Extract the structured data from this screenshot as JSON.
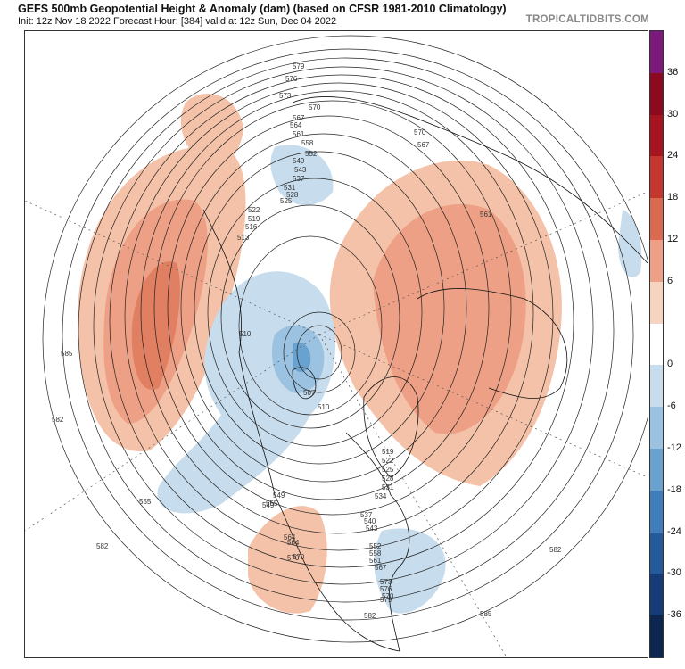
{
  "header": {
    "title": "GEFS 500mb Geopotential Height & Anomaly (dam) (based on CFSR 1981-2010 Climatology)",
    "subtitle": "Init: 12z Nov 18 2022   Forecast Hour: [384]   valid at 12z Sun, Dec 04 2022",
    "brand": "TROPICALTIDBITS.COM"
  },
  "colorbar": {
    "ticks": [
      "36",
      "30",
      "24",
      "18",
      "12",
      "6",
      "0",
      "-6",
      "-12",
      "-18",
      "-24",
      "-30",
      "-36"
    ],
    "colors": [
      "#7b1a7a",
      "#8b0a1e",
      "#a5141f",
      "#c2382e",
      "#d9694f",
      "#eda085",
      "#f7d3c1",
      "#ffffff",
      "#c7dcec",
      "#9bc2e0",
      "#6aa2cf",
      "#3f7dbb",
      "#225a9c",
      "#163c77",
      "#0d2550"
    ]
  },
  "map": {
    "height_labels": [
      "579",
      "576",
      "573",
      "570",
      "567",
      "564",
      "561",
      "558",
      "552",
      "549",
      "543",
      "537",
      "531",
      "528",
      "525",
      "522",
      "519",
      "516",
      "513",
      "510",
      "507",
      "510",
      "519",
      "522",
      "525",
      "528",
      "531",
      "534",
      "537",
      "540",
      "543",
      "549",
      "552",
      "555",
      "558",
      "561",
      "564",
      "567",
      "570",
      "573",
      "576",
      "579",
      "582",
      "585",
      "582",
      "582",
      "585",
      "561",
      "567",
      "570",
      "555",
      "549",
      "564",
      "570",
      "570",
      "582"
    ],
    "center_label": "",
    "features": [
      "north-america",
      "greenland",
      "europe",
      "asia",
      "pacific-ocean",
      "atlantic-ocean"
    ]
  }
}
